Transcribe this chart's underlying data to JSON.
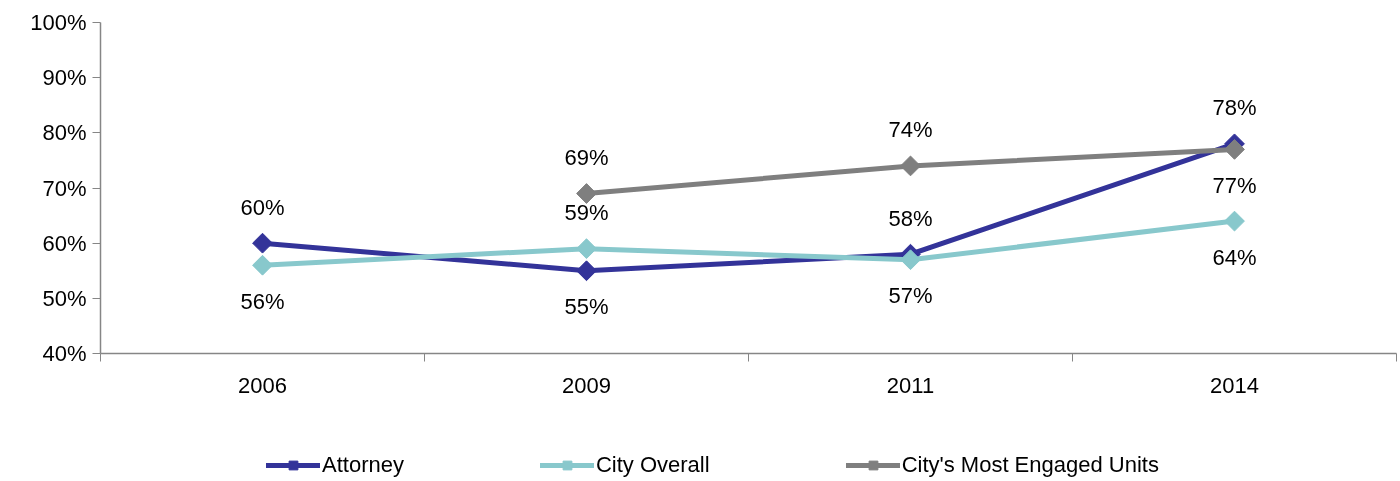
{
  "chart_data": {
    "type": "line",
    "categories": [
      "2006",
      "2009",
      "2011",
      "2014"
    ],
    "series": [
      {
        "name": "Attorney",
        "color": "#333399",
        "values": [
          60,
          55,
          58,
          78
        ],
        "value_labels": [
          "60%",
          "55%",
          "58%",
          "78%"
        ]
      },
      {
        "name": "City Overall",
        "color": "#88c8cc",
        "values": [
          56,
          59,
          57,
          64
        ],
        "value_labels": [
          "56%",
          "59%",
          "57%",
          "64%"
        ]
      },
      {
        "name": "City's Most Engaged Units",
        "color": "#7f7f7f",
        "values": [
          null,
          69,
          74,
          77
        ],
        "value_labels": [
          null,
          "69%",
          "74%",
          "77%"
        ]
      }
    ],
    "ylim": [
      40,
      100
    ],
    "yticks": [
      {
        "value": 40,
        "label": "40%"
      },
      {
        "value": 50,
        "label": "50%"
      },
      {
        "value": 60,
        "label": "60%"
      },
      {
        "value": 70,
        "label": "70%"
      },
      {
        "value": 80,
        "label": "80%"
      },
      {
        "value": 90,
        "label": "90%"
      },
      {
        "value": 100,
        "label": "100%"
      }
    ],
    "grid": false,
    "legend": "bottom",
    "marker": "diamond",
    "line_style": "solid"
  }
}
